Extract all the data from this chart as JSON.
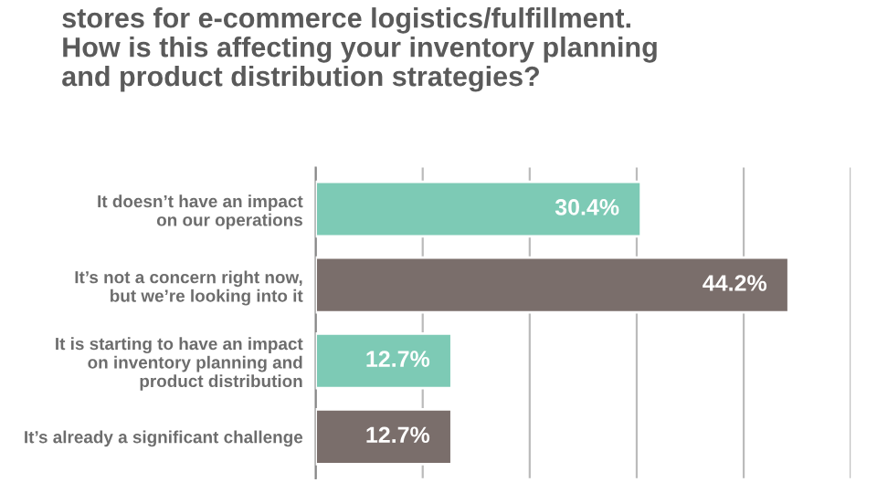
{
  "chart_data": {
    "type": "bar",
    "orientation": "horizontal",
    "title": "stores for e-commerce logistics/fulfillment.\nHow is this affecting your inventory planning\nand product distribution strategies?",
    "categories": [
      "It doesn’t have an impact\non our operations",
      "It’s not a concern right now,\nbut we’re looking into it",
      "It is starting to have an impact\non inventory planning and\nproduct distribution",
      "It’s already a significant challenge"
    ],
    "values": [
      30.4,
      44.2,
      12.7,
      12.7
    ],
    "colors": [
      "#7dcab5",
      "#7a6e6b",
      "#7dcab5",
      "#7a6e6b"
    ],
    "value_labels": [
      "30.4%",
      "44.2%",
      "12.7%",
      "12.7%"
    ],
    "xlim": [
      0,
      50
    ],
    "xticks": [
      {
        "value": 0,
        "label": null
      },
      {
        "value": 10,
        "label": null
      },
      {
        "value": 20,
        "label": null
      },
      {
        "value": 30,
        "label": null
      },
      {
        "value": 40,
        "label": null
      },
      {
        "value": 50,
        "label": null
      }
    ],
    "grid": "x",
    "tick_labels": "y",
    "legend": false
  }
}
